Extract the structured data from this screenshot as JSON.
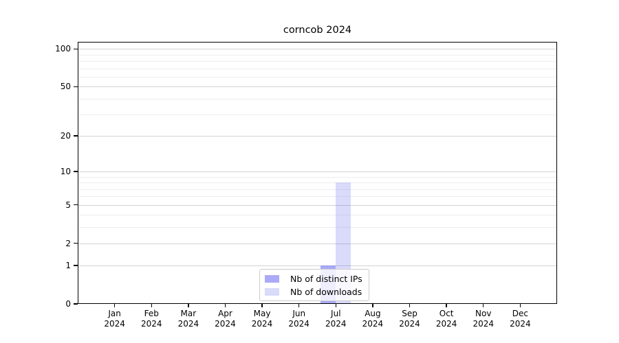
{
  "page": {
    "background": "#ffffff"
  },
  "chart_data": {
    "type": "bar",
    "title": "corncob 2024",
    "x_categories": [
      "Jan",
      "Feb",
      "Mar",
      "Apr",
      "May",
      "Jun",
      "Jul",
      "Aug",
      "Sep",
      "Oct",
      "Nov",
      "Dec"
    ],
    "x_year_label": "2024",
    "series": [
      {
        "name": "Nb of distinct IPs",
        "color": "rgba(100,100,240,0.55)",
        "values": [
          0,
          0,
          0,
          0,
          0,
          0,
          1,
          0,
          0,
          0,
          0,
          0
        ]
      },
      {
        "name": "Nb of downloads",
        "color": "rgba(100,100,240,0.24)",
        "values": [
          0,
          0,
          0,
          0,
          0,
          0,
          8,
          0,
          0,
          0,
          0,
          0
        ]
      }
    ],
    "y_scale": "log1p",
    "y_major_ticks": [
      0,
      1,
      2,
      5,
      10,
      20,
      50,
      100
    ],
    "y_minor_ticks": [
      3,
      4,
      6,
      7,
      8,
      9,
      30,
      40,
      60,
      70,
      80,
      90
    ],
    "ylim": [
      0,
      114
    ],
    "grid": true,
    "legend_position": "lower center",
    "frame_color": "#000000",
    "grid_major_color": "#d2d2d2",
    "grid_minor_color": "#ededed",
    "tick_label_color": "#000000"
  }
}
